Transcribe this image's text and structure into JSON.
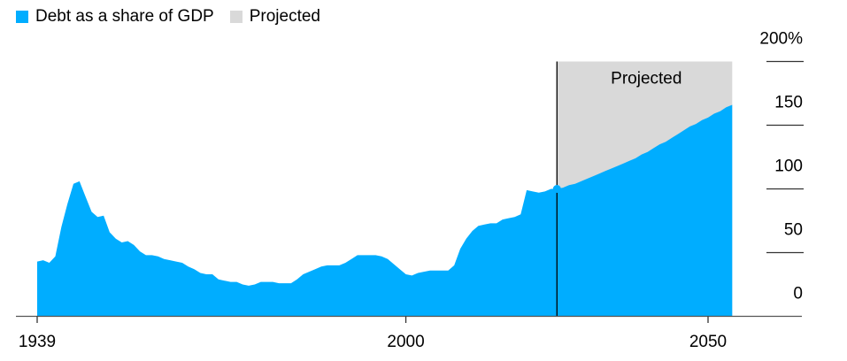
{
  "legend": {
    "items": [
      {
        "label": "Debt as a share of GDP",
        "color": "#00adff"
      },
      {
        "label": "Projected",
        "color": "#d9d9d9"
      }
    ]
  },
  "chart_data": {
    "type": "area",
    "title": "",
    "xlabel": "",
    "ylabel": "",
    "ylim": [
      0,
      200
    ],
    "xlim": [
      1939,
      2054
    ],
    "x_ticks": [
      {
        "value": 1939,
        "label": "1939"
      },
      {
        "value": 2000,
        "label": "2000"
      },
      {
        "value": 2050,
        "label": "2050"
      }
    ],
    "y_ticks": [
      {
        "value": 200,
        "label": "200%"
      },
      {
        "value": 150,
        "label": "150"
      },
      {
        "value": 100,
        "label": "100"
      },
      {
        "value": 50,
        "label": "50"
      },
      {
        "value": 0,
        "label": "0"
      }
    ],
    "grid": true,
    "legend_position": "top-left",
    "projection_start": 2025,
    "projection_label": "Projected",
    "series": [
      {
        "name": "Debt as a share of GDP",
        "color": "#00adff",
        "x": [
          1939,
          1940,
          1941,
          1942,
          1943,
          1944,
          1945,
          1946,
          1947,
          1948,
          1949,
          1950,
          1951,
          1952,
          1953,
          1954,
          1955,
          1956,
          1957,
          1958,
          1959,
          1960,
          1961,
          1962,
          1963,
          1964,
          1965,
          1966,
          1967,
          1968,
          1969,
          1970,
          1971,
          1972,
          1973,
          1974,
          1975,
          1976,
          1977,
          1978,
          1979,
          1980,
          1981,
          1982,
          1983,
          1984,
          1985,
          1986,
          1987,
          1988,
          1989,
          1990,
          1991,
          1992,
          1993,
          1994,
          1995,
          1996,
          1997,
          1998,
          1999,
          2000,
          2001,
          2002,
          2003,
          2004,
          2005,
          2006,
          2007,
          2008,
          2009,
          2010,
          2011,
          2012,
          2013,
          2014,
          2015,
          2016,
          2017,
          2018,
          2019,
          2020,
          2021,
          2022,
          2023,
          2024,
          2025,
          2026,
          2027,
          2028,
          2029,
          2030,
          2031,
          2032,
          2033,
          2034,
          2035,
          2036,
          2037,
          2038,
          2039,
          2040,
          2041,
          2042,
          2043,
          2044,
          2045,
          2046,
          2047,
          2048,
          2049,
          2050,
          2051,
          2052,
          2053,
          2054
        ],
        "values": [
          43,
          44,
          42,
          47,
          70,
          88,
          104,
          106,
          94,
          82,
          78,
          79,
          66,
          61,
          58,
          59,
          56,
          51,
          48,
          48,
          47,
          45,
          44,
          43,
          42,
          39,
          37,
          34,
          33,
          33,
          29,
          28,
          27,
          27,
          25,
          24,
          25,
          27,
          27,
          27,
          26,
          26,
          26,
          29,
          33,
          35,
          37,
          39,
          40,
          40,
          40,
          42,
          45,
          48,
          48,
          48,
          48,
          47,
          45,
          41,
          37,
          33,
          32,
          34,
          35,
          36,
          36,
          36,
          36,
          40,
          53,
          61,
          67,
          71,
          72,
          73,
          73,
          76,
          77,
          78,
          80,
          99,
          98,
          97,
          98,
          100,
          100,
          101,
          103,
          104,
          106,
          108,
          110,
          112,
          114,
          116,
          118,
          120,
          122,
          124,
          127,
          129,
          132,
          135,
          137,
          140,
          143,
          146,
          149,
          151,
          154,
          156,
          159,
          161,
          164,
          166
        ]
      }
    ]
  }
}
